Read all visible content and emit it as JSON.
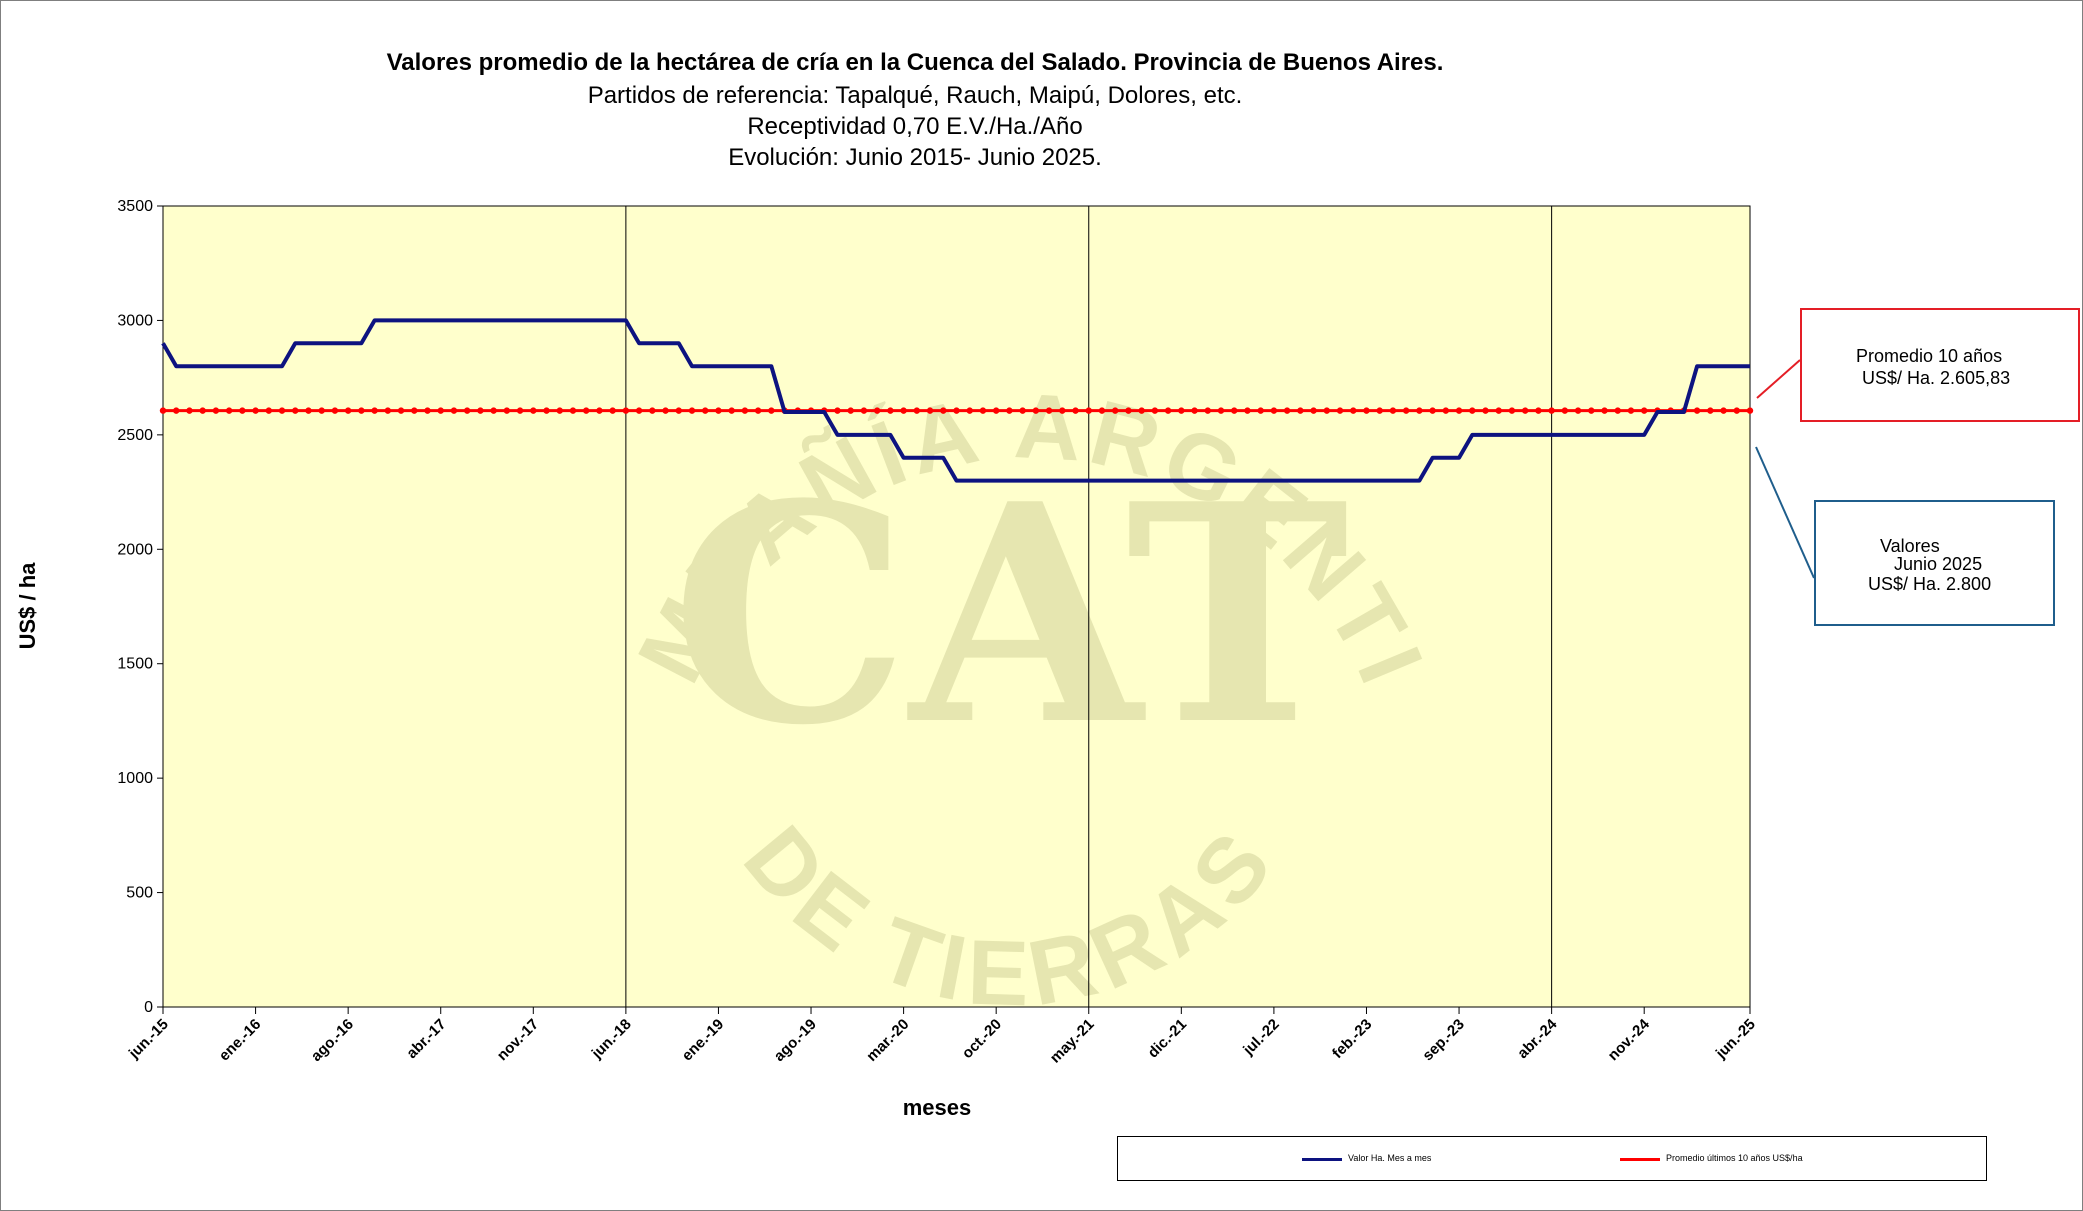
{
  "title": {
    "main": "Valores promedio de la hectárea de cría en la Cuenca del Salado. Provincia de Buenos Aires.",
    "line2": "Partidos de referencia: Tapalqué, Rauch, Maipú, Dolores, etc.",
    "line3": "Receptividad 0,70 E.V./Ha./Año",
    "line4": "Evolución: Junio 2015- Junio 2025."
  },
  "watermark": {
    "arc_top": "COMPAÑÍA ARGENTINA",
    "arc_bottom": "DE TIERRAS",
    "logo": "CAT"
  },
  "callouts": {
    "average": {
      "line1": "Promedio 10 años",
      "line2": "US$/ Ha. 2.605,83"
    },
    "current": {
      "line1": "Valores",
      "line2": "Junio 2025",
      "line3": "US$/ Ha. 2.800"
    }
  },
  "legend": {
    "series1": "Valor Ha. Mes a mes",
    "series2": "Promedio últimos 10 años US$/ha"
  },
  "colors": {
    "plot_background": "#ffffcc",
    "series_value": "#0d1380",
    "series_average": "#ff0000",
    "watermark": "#e6e6b0"
  },
  "chart_data": {
    "type": "line",
    "title": "Valores promedio de la hectárea de cría en la Cuenca del Salado. Provincia de Buenos Aires.",
    "xlabel": "meses",
    "ylabel": "US$ / ha",
    "ylim": [
      0,
      3500
    ],
    "yticks": [
      0,
      500,
      1000,
      1500,
      2000,
      2500,
      3000,
      3500
    ],
    "x_start": "jun.-15",
    "x_end": "jun.-25",
    "xtick_labels": [
      "jun.-15",
      "ene.-16",
      "ago.-16",
      "abr.-17",
      "nov.-17",
      "jun.-18",
      "ene.-19",
      "ago.-19",
      "mar.-20",
      "oct.-20",
      "may.-21",
      "dic.-21",
      "jul.-22",
      "feb.-23",
      "sep.-23",
      "abr.-24",
      "nov.-24",
      "jun.-25"
    ],
    "series": [
      {
        "name": "Valor Ha. Mes a mes",
        "values": [
          2900,
          2800,
          2800,
          2800,
          2800,
          2800,
          2800,
          2800,
          2800,
          2800,
          2900,
          2900,
          2900,
          2900,
          2900,
          2900,
          3000,
          3000,
          3000,
          3000,
          3000,
          3000,
          3000,
          3000,
          3000,
          3000,
          3000,
          3000,
          3000,
          3000,
          3000,
          3000,
          3000,
          3000,
          3000,
          3000,
          2900,
          2900,
          2900,
          2900,
          2800,
          2800,
          2800,
          2800,
          2800,
          2800,
          2800,
          2600,
          2600,
          2600,
          2600,
          2500,
          2500,
          2500,
          2500,
          2500,
          2400,
          2400,
          2400,
          2400,
          2300,
          2300,
          2300,
          2300,
          2300,
          2300,
          2300,
          2300,
          2300,
          2300,
          2300,
          2300,
          2300,
          2300,
          2300,
          2300,
          2300,
          2300,
          2300,
          2300,
          2300,
          2300,
          2300,
          2300,
          2300,
          2300,
          2300,
          2300,
          2300,
          2300,
          2300,
          2300,
          2300,
          2300,
          2300,
          2300,
          2400,
          2400,
          2400,
          2500,
          2500,
          2500,
          2500,
          2500,
          2500,
          2500,
          2500,
          2500,
          2500,
          2500,
          2500,
          2500,
          2500,
          2600,
          2600,
          2600,
          2800,
          2800,
          2800,
          2800,
          2800
        ]
      },
      {
        "name": "Promedio últimos 10 años US$/ha",
        "constant": 2605.83
      }
    ],
    "vertical_gridlines_at": [
      "jun.-18",
      "may.-21",
      "abr.-24"
    ],
    "legend_position": "bottom-right",
    "grid": false
  }
}
